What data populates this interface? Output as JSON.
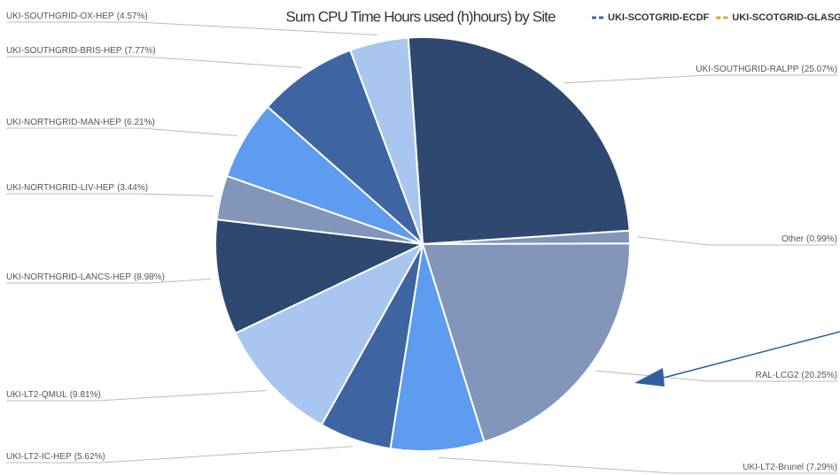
{
  "chart_data": {
    "type": "pie",
    "title": "Sum CPU Time Hours used (h)hours) by Site",
    "categories": [
      "UKI-SOUTHGRID-RALPP",
      "Other",
      "RAL-LCG2",
      "UKI-LT2-Brunel",
      "UKI-LT2-IC-HEP",
      "UKI-LT2-QMUL",
      "UKI-NORTHGRID-LANCS-HEP",
      "UKI-NORTHGRID-LIV-HEP",
      "UKI-NORTHGRID-MAN-HEP",
      "UKI-SOUTHGRID-BRIS-HEP",
      "UKI-SOUTHGRID-OX-HEP"
    ],
    "values": [
      25.07,
      0.99,
      20.25,
      7.29,
      5.62,
      9.81,
      8.98,
      3.44,
      6.21,
      7.77,
      4.57
    ],
    "value_labels": [
      "(25.07%)",
      "(0.99%)",
      "(20.25%)",
      "(7.29%)",
      "(5.62%)",
      "(9.81%)",
      "(8.98%)",
      "(3.44%)",
      "(6.21%)",
      "(7.77%)",
      "(4.57%)"
    ],
    "colors": [
      "#2f4870",
      "#8196b8",
      "#8196b8",
      "#5d9cef",
      "#3e64a2",
      "#a9c6f1",
      "#2f4870",
      "#8196b8",
      "#5d9cef",
      "#3e64a2",
      "#a9c6f1"
    ],
    "legend": [
      {
        "name": "UKI-SCOTGRID-ECDF",
        "color": "#3e64a2"
      },
      {
        "name": "UKI-SCOTGRID-GLASG",
        "color": "#e0a030"
      }
    ]
  }
}
